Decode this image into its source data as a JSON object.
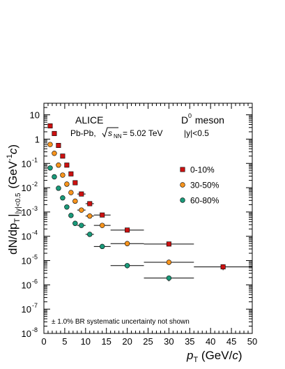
{
  "chart_data": {
    "type": "scatter",
    "x_scale": "linear",
    "y_scale": "log",
    "xlim": [
      0,
      50
    ],
    "ylim": [
      1e-08,
      30
    ],
    "x_ticks": [
      0,
      5,
      10,
      15,
      20,
      25,
      30,
      35,
      40,
      45,
      50
    ],
    "x_tick_labels": [
      "0",
      "5",
      "10",
      "15",
      "20",
      "25",
      "30",
      "35",
      "40",
      "45",
      "50"
    ],
    "y_ticks": [
      1e-08,
      1e-07,
      1e-06,
      1e-05,
      0.0001,
      0.001,
      0.01,
      0.1,
      1,
      10
    ],
    "y_tick_labels": [
      {
        "base": "10",
        "exp": "-8"
      },
      {
        "base": "10",
        "exp": "-7"
      },
      {
        "base": "10",
        "exp": "-6"
      },
      {
        "base": "10",
        "exp": "-5"
      },
      {
        "base": "10",
        "exp": "-4"
      },
      {
        "base": "10",
        "exp": "-3"
      },
      {
        "base": "10",
        "exp": "-2"
      },
      {
        "base": "10",
        "exp": "-1"
      },
      {
        "base": "1",
        "exp": ""
      },
      {
        "base": "10",
        "exp": ""
      }
    ],
    "xlabel": {
      "main": "p",
      "sub": "T",
      "unit_pre": " (GeV/",
      "unit_italic": "c",
      "unit_post": ")"
    },
    "ylabel": {
      "text": "dN/dp",
      "sub_T": "T",
      "bar": "|",
      "range": "|y|<0.5",
      "unit": "(GeV",
      "unit_exp": "-1",
      "unit_italic": "c",
      "unit_close": ")"
    },
    "annotations": {
      "experiment": "ALICE",
      "collision": "Pb-Pb,",
      "energy_sqrt": "s",
      "energy_sub": "NN",
      "energy_value": "= 5.02 TeV",
      "particle": "D",
      "particle_sup": "0",
      "particle_suffix": " meson",
      "rapidity": "|y|<0.5",
      "footnote": "± 1.0% BR systematic uncertainty not shown"
    },
    "legend_position": "right",
    "series": [
      {
        "name": "0-10%",
        "marker": "square",
        "color": "#cc1111",
        "points": [
          {
            "x": 1.5,
            "xerr": 0.5,
            "y": 3.5
          },
          {
            "x": 2.5,
            "xerr": 0.5,
            "y": 1.7
          },
          {
            "x": 3.5,
            "xerr": 0.5,
            "y": 0.55
          },
          {
            "x": 4.5,
            "xerr": 0.5,
            "y": 0.2
          },
          {
            "x": 5.5,
            "xerr": 0.5,
            "y": 0.085
          },
          {
            "x": 6.5,
            "xerr": 0.5,
            "y": 0.037
          },
          {
            "x": 7.5,
            "xerr": 0.5,
            "y": 0.016
          },
          {
            "x": 9.0,
            "xerr": 1.0,
            "y": 0.0055
          },
          {
            "x": 11.0,
            "xerr": 1.0,
            "y": 0.0022
          },
          {
            "x": 14.0,
            "xerr": 2.0,
            "y": 0.00075
          },
          {
            "x": 20.0,
            "xerr": 4.0,
            "y": 0.00018
          },
          {
            "x": 30.0,
            "xerr": 6.0,
            "y": 4.8e-05
          },
          {
            "x": 43.0,
            "xerr": 7.0,
            "y": 5.5e-06,
            "yerr_lo": 1.5e-06,
            "yerr_hi": 1.5e-06
          }
        ]
      },
      {
        "name": "30-50%",
        "marker": "circle",
        "color": "#f7941d",
        "points": [
          {
            "x": 1.5,
            "xerr": 0.5,
            "y": 0.6
          },
          {
            "x": 2.5,
            "xerr": 0.5,
            "y": 0.26
          },
          {
            "x": 3.5,
            "xerr": 0.5,
            "y": 0.085
          },
          {
            "x": 4.5,
            "xerr": 0.5,
            "y": 0.033
          },
          {
            "x": 5.5,
            "xerr": 0.5,
            "y": 0.014
          },
          {
            "x": 6.5,
            "xerr": 0.5,
            "y": 0.0063
          },
          {
            "x": 7.5,
            "xerr": 0.5,
            "y": 0.0028
          },
          {
            "x": 9.0,
            "xerr": 1.0,
            "y": 0.0012
          },
          {
            "x": 11.0,
            "xerr": 1.0,
            "y": 0.00068
          },
          {
            "x": 14.0,
            "xerr": 2.0,
            "y": 0.00028
          },
          {
            "x": 20.0,
            "xerr": 4.0,
            "y": 5e-05
          },
          {
            "x": 30.0,
            "xerr": 6.0,
            "y": 8.5e-06
          }
        ]
      },
      {
        "name": "60-80%",
        "marker": "circle",
        "color": "#1a9a7a",
        "points": [
          {
            "x": 1.5,
            "xerr": 0.5,
            "y": 0.065
          },
          {
            "x": 2.5,
            "xerr": 0.5,
            "y": 0.028
          },
          {
            "x": 3.5,
            "xerr": 0.5,
            "y": 0.0095
          },
          {
            "x": 4.5,
            "xerr": 0.5,
            "y": 0.0038
          },
          {
            "x": 5.5,
            "xerr": 0.5,
            "y": 0.0016
          },
          {
            "x": 6.5,
            "xerr": 0.5,
            "y": 0.00072
          },
          {
            "x": 7.5,
            "xerr": 0.5,
            "y": 0.00034
          },
          {
            "x": 9.0,
            "xerr": 1.0,
            "y": 0.00028
          },
          {
            "x": 11.0,
            "xerr": 1.0,
            "y": 0.00012
          },
          {
            "x": 14.0,
            "xerr": 2.0,
            "y": 3.8e-05
          },
          {
            "x": 20.0,
            "xerr": 4.0,
            "y": 6.2e-06,
            "yerr_lo": 1.4e-06,
            "yerr_hi": 1.4e-06
          },
          {
            "x": 30.0,
            "xerr": 6.0,
            "y": 1.9e-06,
            "yerr_lo": 5e-07,
            "yerr_hi": 5e-07
          }
        ]
      }
    ]
  }
}
